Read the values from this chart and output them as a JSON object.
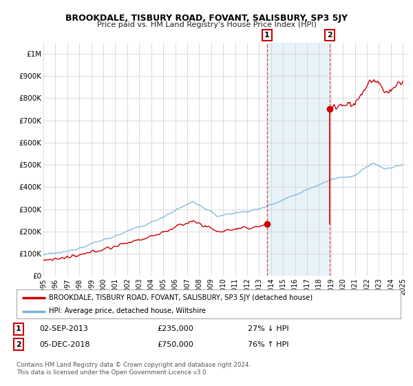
{
  "title": "BROOKDALE, TISBURY ROAD, FOVANT, SALISBURY, SP3 5JY",
  "subtitle": "Price paid vs. HM Land Registry's House Price Index (HPI)",
  "xlim": [
    1995.0,
    2025.5
  ],
  "ylim": [
    0,
    1050000
  ],
  "yticks": [
    0,
    100000,
    200000,
    300000,
    400000,
    500000,
    600000,
    700000,
    800000,
    900000,
    1000000
  ],
  "ytick_labels": [
    "£0",
    "£100K",
    "£200K",
    "£300K",
    "£400K",
    "£500K",
    "£600K",
    "£700K",
    "£800K",
    "£900K",
    "£1M"
  ],
  "hpi_color": "#7ab4d8",
  "price_color": "#cc0000",
  "sale1_x": 2013.67,
  "sale1_y": 235000,
  "sale2_x": 2018.92,
  "sale2_y": 750000,
  "shade_color": "#d6e8f5",
  "shade_alpha": 0.55,
  "legend_property": "BROOKDALE, TISBURY ROAD, FOVANT, SALISBURY, SP3 5JY (detached house)",
  "legend_hpi": "HPI: Average price, detached house, Wiltshire",
  "table_row1_num": "1",
  "table_row1_date": "02-SEP-2013",
  "table_row1_price": "£235,000",
  "table_row1_hpi": "27% ↓ HPI",
  "table_row2_num": "2",
  "table_row2_date": "05-DEC-2018",
  "table_row2_price": "£750,000",
  "table_row2_hpi": "76% ↑ HPI",
  "footnote": "Contains HM Land Registry data © Crown copyright and database right 2024.\nThis data is licensed under the Open Government Licence v3.0.",
  "background_color": "#ffffff",
  "plot_bg_color": "#ffffff",
  "grid_color": "#cccccc"
}
